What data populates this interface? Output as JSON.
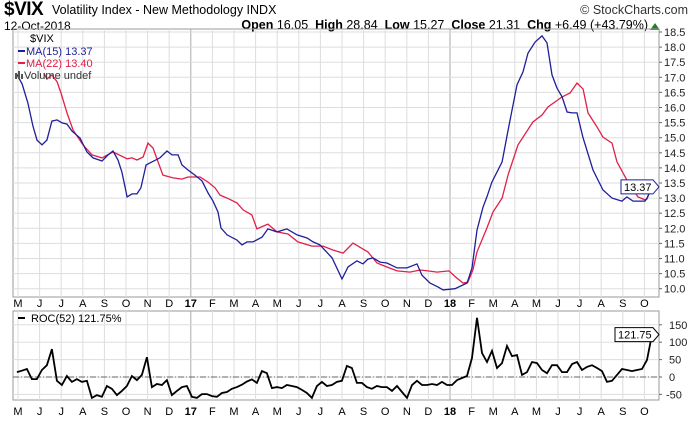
{
  "header": {
    "symbol": "$VIX",
    "name": "Volatility Index - New Methodology  INDX",
    "copyright": "© StockCharts.com",
    "date": "12-Oct-2018",
    "open_label": "Open",
    "open": "16.05",
    "high_label": "High",
    "high": "28.84",
    "low_label": "Low",
    "low": "15.27",
    "close_label": "Close",
    "close": "21.31",
    "chg_label": "Chg",
    "chg": "+6.49 (+43.79%)",
    "up_color": "#2a7a2a"
  },
  "legend": {
    "symbol": "$VIX",
    "ma15": "MA(15) 13.37",
    "ma22": "MA(22) 13.40",
    "volume": "Volume undef",
    "roc": "ROC(52) 121.75%"
  },
  "chart_data": [
    {
      "type": "line",
      "title": "$VIX",
      "x_unit": "months since May 2016",
      "x_ticks": [
        "M",
        "J",
        "J",
        "A",
        "S",
        "O",
        "N",
        "D",
        "17",
        "F",
        "M",
        "A",
        "M",
        "J",
        "J",
        "A",
        "S",
        "O",
        "N",
        "D",
        "18",
        "F",
        "M",
        "A",
        "M",
        "J",
        "J",
        "A",
        "S",
        "O"
      ],
      "ylim": [
        10.0,
        18.5
      ],
      "y_ticks": [
        "10.0",
        "10.5",
        "11.0",
        "11.5",
        "12.0",
        "12.5",
        "13.0",
        "13.5",
        "14.0",
        "14.5",
        "15.0",
        "15.5",
        "16.0",
        "16.5",
        "17.0",
        "17.5",
        "18.0",
        "18.5"
      ],
      "y_axis": "right",
      "grid": true,
      "last_value_label": "13.37",
      "series": [
        {
          "name": "MA(15)",
          "color": "#1f1f9a",
          "points": [
            [
              -0.09,
              17.14
            ],
            [
              0.19,
              16.78
            ],
            [
              0.46,
              16.15
            ],
            [
              0.69,
              15.39
            ],
            [
              0.88,
              14.92
            ],
            [
              1.11,
              14.76
            ],
            [
              1.34,
              14.92
            ],
            [
              1.57,
              15.55
            ],
            [
              1.81,
              15.59
            ],
            [
              2.04,
              15.49
            ],
            [
              2.27,
              15.45
            ],
            [
              2.5,
              15.22
            ],
            [
              2.87,
              14.99
            ],
            [
              3.19,
              14.53
            ],
            [
              3.47,
              14.33
            ],
            [
              3.89,
              14.23
            ],
            [
              4.17,
              14.43
            ],
            [
              4.4,
              14.56
            ],
            [
              4.63,
              14.26
            ],
            [
              4.81,
              13.86
            ],
            [
              5.05,
              13.04
            ],
            [
              5.28,
              13.14
            ],
            [
              5.51,
              13.14
            ],
            [
              5.69,
              13.34
            ],
            [
              5.93,
              14.1
            ],
            [
              6.2,
              14.2
            ],
            [
              6.57,
              14.33
            ],
            [
              6.9,
              14.56
            ],
            [
              7.13,
              14.43
            ],
            [
              7.41,
              14.43
            ],
            [
              7.59,
              14.1
            ],
            [
              7.87,
              13.93
            ],
            [
              8.19,
              13.76
            ],
            [
              8.52,
              13.57
            ],
            [
              8.8,
              13.17
            ],
            [
              9.03,
              12.9
            ],
            [
              9.26,
              12.54
            ],
            [
              9.4,
              12.01
            ],
            [
              9.68,
              11.78
            ],
            [
              10.14,
              11.61
            ],
            [
              10.37,
              11.45
            ],
            [
              10.6,
              11.55
            ],
            [
              10.88,
              11.55
            ],
            [
              11.3,
              11.71
            ],
            [
              11.57,
              11.98
            ],
            [
              11.99,
              11.88
            ],
            [
              12.45,
              11.98
            ],
            [
              12.92,
              11.78
            ],
            [
              13.38,
              11.68
            ],
            [
              13.66,
              11.55
            ],
            [
              13.98,
              11.45
            ],
            [
              14.54,
              11.02
            ],
            [
              15.0,
              10.32
            ],
            [
              15.28,
              10.72
            ],
            [
              15.69,
              10.92
            ],
            [
              15.97,
              10.82
            ],
            [
              16.2,
              10.98
            ],
            [
              16.44,
              11.02
            ],
            [
              16.76,
              10.88
            ],
            [
              17.08,
              10.85
            ],
            [
              17.55,
              10.69
            ],
            [
              18.01,
              10.69
            ],
            [
              18.47,
              10.82
            ],
            [
              18.7,
              10.45
            ],
            [
              19.07,
              10.19
            ],
            [
              19.44,
              10.06
            ],
            [
              19.68,
              9.96
            ],
            [
              20.23,
              10.0
            ],
            [
              20.79,
              10.19
            ],
            [
              21.02,
              10.69
            ],
            [
              21.25,
              11.94
            ],
            [
              21.53,
              12.7
            ],
            [
              21.71,
              13.04
            ],
            [
              21.94,
              13.53
            ],
            [
              22.41,
              14.2
            ],
            [
              22.69,
              15.25
            ],
            [
              23.1,
              16.75
            ],
            [
              23.38,
              17.18
            ],
            [
              23.61,
              17.8
            ],
            [
              23.94,
              18.17
            ],
            [
              24.26,
              18.37
            ],
            [
              24.49,
              18.14
            ],
            [
              24.72,
              17.08
            ],
            [
              24.95,
              16.65
            ],
            [
              25.19,
              16.35
            ],
            [
              25.42,
              15.85
            ],
            [
              25.65,
              15.82
            ],
            [
              25.88,
              15.82
            ],
            [
              26.16,
              14.99
            ],
            [
              26.62,
              13.93
            ],
            [
              27.08,
              13.27
            ],
            [
              27.5,
              13.0
            ],
            [
              27.96,
              12.9
            ],
            [
              28.19,
              13.04
            ],
            [
              28.47,
              12.9
            ],
            [
              29.03,
              12.9
            ],
            [
              29.12,
              13.0
            ],
            [
              29.35,
              13.37
            ]
          ]
        },
        {
          "name": "MA(22)",
          "color": "#e0204a",
          "points": [
            [
              1.2,
              17.14
            ],
            [
              1.34,
              16.94
            ],
            [
              1.57,
              17.08
            ],
            [
              1.81,
              16.85
            ],
            [
              1.99,
              16.48
            ],
            [
              2.27,
              15.82
            ],
            [
              2.55,
              15.25
            ],
            [
              3.01,
              14.76
            ],
            [
              3.43,
              14.43
            ],
            [
              3.89,
              14.33
            ],
            [
              4.4,
              14.53
            ],
            [
              5.05,
              14.3
            ],
            [
              5.28,
              14.33
            ],
            [
              5.51,
              14.26
            ],
            [
              5.79,
              14.36
            ],
            [
              6.02,
              14.82
            ],
            [
              6.25,
              14.66
            ],
            [
              6.71,
              13.76
            ],
            [
              7.18,
              13.67
            ],
            [
              7.59,
              13.63
            ],
            [
              7.87,
              13.7
            ],
            [
              8.43,
              13.7
            ],
            [
              8.8,
              13.53
            ],
            [
              9.12,
              13.34
            ],
            [
              9.35,
              13.1
            ],
            [
              9.68,
              13.0
            ],
            [
              10.14,
              12.84
            ],
            [
              10.42,
              12.61
            ],
            [
              10.83,
              12.44
            ],
            [
              11.06,
              11.98
            ],
            [
              11.57,
              12.14
            ],
            [
              11.99,
              11.88
            ],
            [
              12.5,
              11.81
            ],
            [
              12.96,
              11.55
            ],
            [
              13.61,
              11.41
            ],
            [
              14.12,
              11.41
            ],
            [
              14.58,
              11.28
            ],
            [
              15.05,
              11.18
            ],
            [
              15.51,
              11.51
            ],
            [
              15.97,
              11.31
            ],
            [
              16.2,
              11.22
            ],
            [
              16.62,
              10.85
            ],
            [
              17.08,
              10.72
            ],
            [
              17.55,
              10.59
            ],
            [
              18.15,
              10.55
            ],
            [
              18.61,
              10.62
            ],
            [
              18.98,
              10.59
            ],
            [
              19.4,
              10.55
            ],
            [
              19.95,
              10.59
            ],
            [
              20.32,
              10.35
            ],
            [
              20.6,
              10.19
            ],
            [
              20.83,
              10.22
            ],
            [
              21.06,
              10.62
            ],
            [
              21.25,
              11.22
            ],
            [
              21.71,
              12.01
            ],
            [
              21.99,
              12.54
            ],
            [
              22.41,
              13.0
            ],
            [
              22.69,
              13.77
            ],
            [
              23.15,
              14.76
            ],
            [
              23.84,
              15.52
            ],
            [
              24.26,
              15.75
            ],
            [
              24.54,
              16.02
            ],
            [
              25.19,
              16.35
            ],
            [
              25.56,
              16.48
            ],
            [
              25.88,
              16.81
            ],
            [
              26.16,
              16.61
            ],
            [
              26.39,
              15.82
            ],
            [
              26.81,
              15.35
            ],
            [
              27.08,
              15.02
            ],
            [
              27.5,
              14.82
            ],
            [
              27.73,
              14.2
            ],
            [
              28.19,
              13.6
            ],
            [
              28.7,
              13.04
            ],
            [
              29.03,
              12.94
            ],
            [
              29.12,
              12.97
            ],
            [
              29.35,
              13.4
            ]
          ]
        }
      ]
    },
    {
      "type": "line",
      "title": "ROC(52)",
      "x_unit": "months since May 2016",
      "x_start": -0.05,
      "x_step": 0.2315,
      "ylim": [
        -65,
        175
      ],
      "y_ticks": [
        "-50",
        "0",
        "50",
        "100",
        "150"
      ],
      "zero_line": true,
      "last_value_label": "121.75",
      "series": [
        {
          "name": "ROC(52)",
          "color": "#000000",
          "values": [
            14,
            18,
            23,
            -6,
            -6,
            20,
            34,
            80,
            -11,
            -23,
            3,
            -14,
            -6,
            -14,
            -11,
            -60,
            -52,
            -57,
            -26,
            -34,
            -52,
            -40,
            -26,
            3,
            -9,
            6,
            57,
            -29,
            -20,
            -23,
            -9,
            -52,
            -40,
            -29,
            -26,
            -57,
            -60,
            -49,
            -49,
            -55,
            -57,
            -46,
            -43,
            -34,
            -29,
            -22,
            -13,
            -7,
            -17,
            17,
            11,
            -32,
            -29,
            -32,
            -23,
            -26,
            -29,
            -37,
            -46,
            -60,
            -26,
            -14,
            -26,
            -23,
            -14,
            -11,
            32,
            26,
            -17,
            -17,
            -29,
            -34,
            -26,
            -29,
            -29,
            -40,
            -26,
            -43,
            -60,
            -23,
            -11,
            -23,
            -23,
            -20,
            -23,
            -14,
            -23,
            -23,
            -9,
            -3,
            3,
            55,
            170,
            69,
            43,
            75,
            26,
            40,
            89,
            60,
            63,
            6,
            14,
            43,
            40,
            20,
            11,
            34,
            34,
            14,
            14,
            37,
            43,
            20,
            29,
            34,
            26,
            17,
            -14,
            -11,
            6,
            23,
            20,
            17,
            20,
            23,
            49,
            121.75
          ]
        }
      ]
    }
  ]
}
